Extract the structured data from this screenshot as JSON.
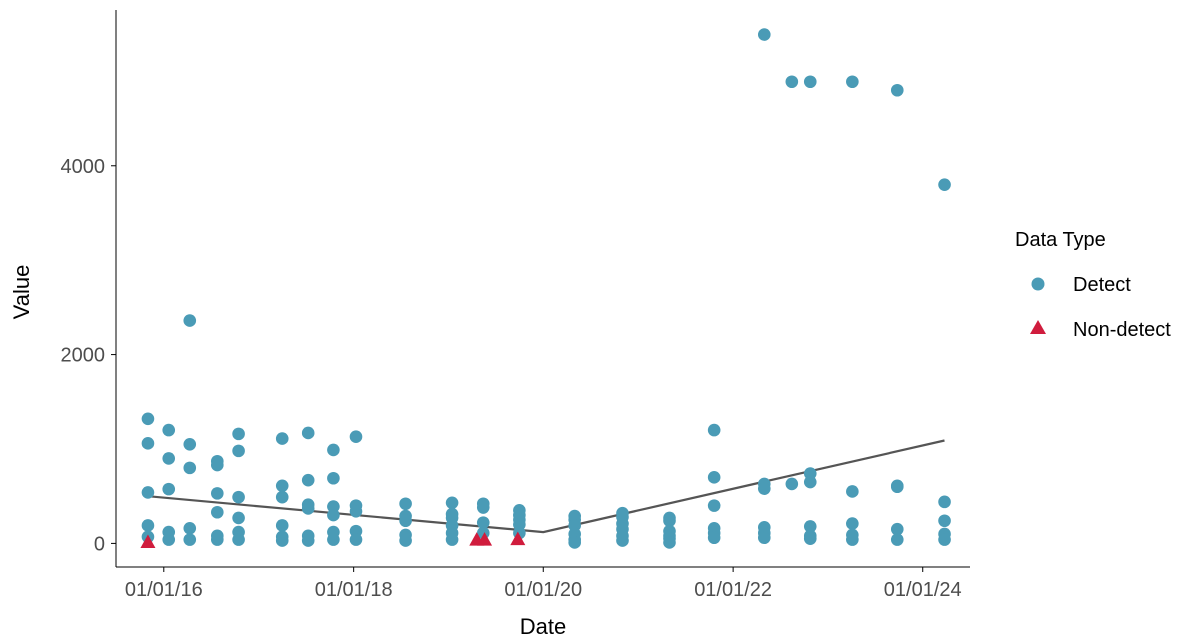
{
  "chart_data": {
    "type": "scatter",
    "xlabel": "Date",
    "ylabel": "Value",
    "x_ticks": [
      {
        "date": "2016-01-01",
        "label": "01/01/16"
      },
      {
        "date": "2018-01-01",
        "label": "01/01/18"
      },
      {
        "date": "2020-01-01",
        "label": "01/01/20"
      },
      {
        "date": "2022-01-01",
        "label": "01/01/22"
      },
      {
        "date": "2024-01-01",
        "label": "01/01/24"
      }
    ],
    "y_ticks": [
      0,
      2000,
      4000
    ],
    "xlim": [
      "2015-07-01",
      "2024-07-01"
    ],
    "ylim": [
      -250,
      5650
    ],
    "grid": false,
    "legend": {
      "title": "Data Type",
      "position": "right",
      "entries": [
        {
          "label": "Detect",
          "shape": "circle",
          "color": "#4A9BB6"
        },
        {
          "label": "Non-detect",
          "shape": "triangle",
          "color": "#D01C3D"
        }
      ]
    },
    "series": [
      {
        "name": "Detect",
        "shape": "circle",
        "color": "#4A9BB6",
        "points": [
          {
            "x": "2015-11-01",
            "y": 1320
          },
          {
            "x": "2015-11-01",
            "y": 1060
          },
          {
            "x": "2015-11-01",
            "y": 540
          },
          {
            "x": "2015-11-01",
            "y": 190
          },
          {
            "x": "2015-11-01",
            "y": 70
          },
          {
            "x": "2016-01-20",
            "y": 1200
          },
          {
            "x": "2016-01-20",
            "y": 900
          },
          {
            "x": "2016-01-20",
            "y": 575
          },
          {
            "x": "2016-01-20",
            "y": 120
          },
          {
            "x": "2016-01-20",
            "y": 40
          },
          {
            "x": "2016-04-10",
            "y": 2360
          },
          {
            "x": "2016-04-10",
            "y": 1050
          },
          {
            "x": "2016-04-10",
            "y": 800
          },
          {
            "x": "2016-04-10",
            "y": 160
          },
          {
            "x": "2016-04-10",
            "y": 40
          },
          {
            "x": "2016-07-25",
            "y": 870
          },
          {
            "x": "2016-07-25",
            "y": 830
          },
          {
            "x": "2016-07-25",
            "y": 530
          },
          {
            "x": "2016-07-25",
            "y": 330
          },
          {
            "x": "2016-07-25",
            "y": 80
          },
          {
            "x": "2016-07-25",
            "y": 40
          },
          {
            "x": "2016-10-15",
            "y": 1160
          },
          {
            "x": "2016-10-15",
            "y": 980
          },
          {
            "x": "2016-10-15",
            "y": 490
          },
          {
            "x": "2016-10-15",
            "y": 270
          },
          {
            "x": "2016-10-15",
            "y": 120
          },
          {
            "x": "2016-10-15",
            "y": 40
          },
          {
            "x": "2017-04-01",
            "y": 1110
          },
          {
            "x": "2017-04-01",
            "y": 610
          },
          {
            "x": "2017-04-01",
            "y": 490
          },
          {
            "x": "2017-04-01",
            "y": 190
          },
          {
            "x": "2017-04-01",
            "y": 70
          },
          {
            "x": "2017-04-01",
            "y": 30
          },
          {
            "x": "2017-07-10",
            "y": 1170
          },
          {
            "x": "2017-07-10",
            "y": 670
          },
          {
            "x": "2017-07-10",
            "y": 410
          },
          {
            "x": "2017-07-10",
            "y": 370
          },
          {
            "x": "2017-07-10",
            "y": 80
          },
          {
            "x": "2017-07-10",
            "y": 30
          },
          {
            "x": "2017-10-15",
            "y": 990
          },
          {
            "x": "2017-10-15",
            "y": 690
          },
          {
            "x": "2017-10-15",
            "y": 390
          },
          {
            "x": "2017-10-15",
            "y": 300
          },
          {
            "x": "2017-10-15",
            "y": 120
          },
          {
            "x": "2017-10-15",
            "y": 40
          },
          {
            "x": "2018-01-10",
            "y": 1130
          },
          {
            "x": "2018-01-10",
            "y": 400
          },
          {
            "x": "2018-01-10",
            "y": 340
          },
          {
            "x": "2018-01-10",
            "y": 130
          },
          {
            "x": "2018-01-10",
            "y": 40
          },
          {
            "x": "2018-07-20",
            "y": 420
          },
          {
            "x": "2018-07-20",
            "y": 290
          },
          {
            "x": "2018-07-20",
            "y": 240
          },
          {
            "x": "2018-07-20",
            "y": 90
          },
          {
            "x": "2018-07-20",
            "y": 30
          },
          {
            "x": "2019-01-15",
            "y": 430
          },
          {
            "x": "2019-01-15",
            "y": 310
          },
          {
            "x": "2019-01-15",
            "y": 270
          },
          {
            "x": "2019-01-15",
            "y": 190
          },
          {
            "x": "2019-01-15",
            "y": 110
          },
          {
            "x": "2019-01-15",
            "y": 40
          },
          {
            "x": "2019-05-15",
            "y": 420
          },
          {
            "x": "2019-05-15",
            "y": 380
          },
          {
            "x": "2019-05-15",
            "y": 220
          },
          {
            "x": "2019-05-15",
            "y": 110
          },
          {
            "x": "2019-10-01",
            "y": 350
          },
          {
            "x": "2019-10-01",
            "y": 300
          },
          {
            "x": "2019-10-01",
            "y": 250
          },
          {
            "x": "2019-10-01",
            "y": 200
          },
          {
            "x": "2019-10-01",
            "y": 110
          },
          {
            "x": "2020-05-01",
            "y": 290
          },
          {
            "x": "2020-05-01",
            "y": 250
          },
          {
            "x": "2020-05-01",
            "y": 190
          },
          {
            "x": "2020-05-01",
            "y": 100
          },
          {
            "x": "2020-05-01",
            "y": 40
          },
          {
            "x": "2020-05-01",
            "y": 10
          },
          {
            "x": "2020-11-01",
            "y": 320
          },
          {
            "x": "2020-11-01",
            "y": 280
          },
          {
            "x": "2020-11-01",
            "y": 210
          },
          {
            "x": "2020-11-01",
            "y": 150
          },
          {
            "x": "2020-11-01",
            "y": 80
          },
          {
            "x": "2020-11-01",
            "y": 30
          },
          {
            "x": "2021-05-01",
            "y": 270
          },
          {
            "x": "2021-05-01",
            "y": 240
          },
          {
            "x": "2021-05-01",
            "y": 130
          },
          {
            "x": "2021-05-01",
            "y": 80
          },
          {
            "x": "2021-05-01",
            "y": 50
          },
          {
            "x": "2021-05-01",
            "y": 10
          },
          {
            "x": "2021-10-20",
            "y": 1200
          },
          {
            "x": "2021-10-20",
            "y": 700
          },
          {
            "x": "2021-10-20",
            "y": 400
          },
          {
            "x": "2021-10-20",
            "y": 160
          },
          {
            "x": "2021-10-20",
            "y": 110
          },
          {
            "x": "2021-10-20",
            "y": 60
          },
          {
            "x": "2022-05-01",
            "y": 5390
          },
          {
            "x": "2022-05-01",
            "y": 630
          },
          {
            "x": "2022-05-01",
            "y": 580
          },
          {
            "x": "2022-05-01",
            "y": 170
          },
          {
            "x": "2022-05-01",
            "y": 110
          },
          {
            "x": "2022-05-01",
            "y": 60
          },
          {
            "x": "2022-08-15",
            "y": 4890
          },
          {
            "x": "2022-08-15",
            "y": 630
          },
          {
            "x": "2022-10-25",
            "y": 4890
          },
          {
            "x": "2022-10-25",
            "y": 740
          },
          {
            "x": "2022-10-25",
            "y": 650
          },
          {
            "x": "2022-10-25",
            "y": 180
          },
          {
            "x": "2022-10-25",
            "y": 80
          },
          {
            "x": "2022-10-25",
            "y": 50
          },
          {
            "x": "2023-04-05",
            "y": 4890
          },
          {
            "x": "2023-04-05",
            "y": 550
          },
          {
            "x": "2023-04-05",
            "y": 210
          },
          {
            "x": "2023-04-05",
            "y": 90
          },
          {
            "x": "2023-04-05",
            "y": 40
          },
          {
            "x": "2023-09-25",
            "y": 4800
          },
          {
            "x": "2023-09-25",
            "y": 610
          },
          {
            "x": "2023-09-25",
            "y": 600
          },
          {
            "x": "2023-09-25",
            "y": 150
          },
          {
            "x": "2023-09-25",
            "y": 40
          },
          {
            "x": "2024-03-25",
            "y": 3800
          },
          {
            "x": "2024-03-25",
            "y": 440
          },
          {
            "x": "2024-03-25",
            "y": 240
          },
          {
            "x": "2024-03-25",
            "y": 100
          },
          {
            "x": "2024-03-25",
            "y": 40
          }
        ]
      },
      {
        "name": "Non-detect",
        "shape": "triangle",
        "color": "#D01C3D",
        "points": [
          {
            "x": "2015-11-01",
            "y": 15
          },
          {
            "x": "2019-04-20",
            "y": 40
          },
          {
            "x": "2019-05-20",
            "y": 40
          },
          {
            "x": "2019-09-25",
            "y": 45
          }
        ]
      }
    ],
    "trend_line": {
      "color": "#555555",
      "points": [
        {
          "x": "2015-11-01",
          "y": 500
        },
        {
          "x": "2020-01-01",
          "y": 120
        },
        {
          "x": "2024-03-25",
          "y": 1090
        }
      ]
    }
  }
}
